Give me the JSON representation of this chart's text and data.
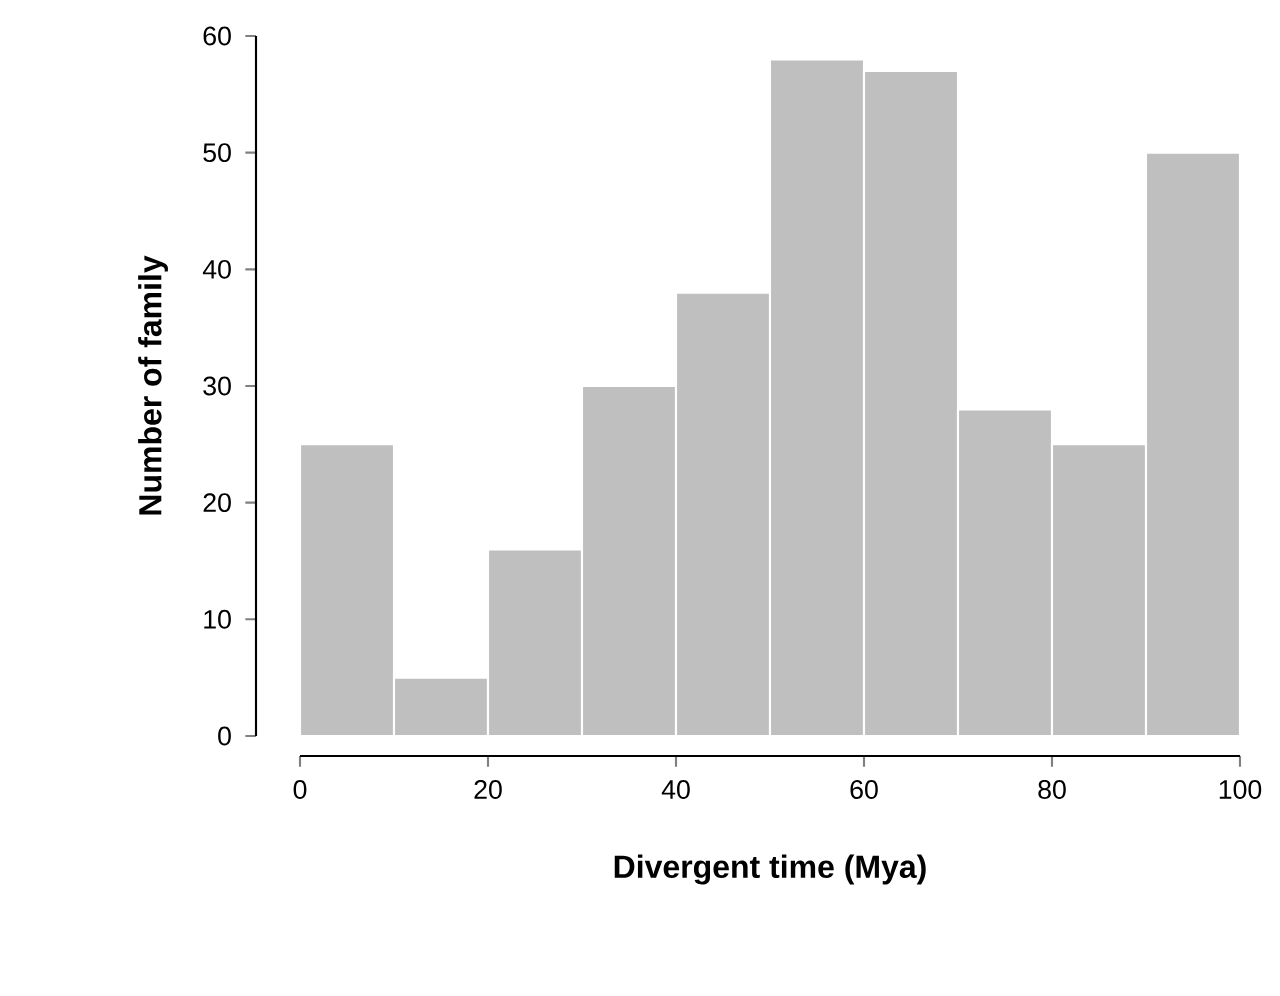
{
  "chart_data": {
    "type": "histogram",
    "xlabel": "Divergent time (Mya)",
    "ylabel": "Number of family",
    "bins": [
      0,
      10,
      20,
      30,
      40,
      50,
      60,
      70,
      80,
      90,
      100
    ],
    "values": [
      25,
      5,
      16,
      30,
      38,
      58,
      57,
      28,
      25,
      50
    ],
    "color": "#bfbfbf",
    "xlim": [
      0,
      100
    ],
    "ylim": [
      0,
      60
    ],
    "xticks": [
      0,
      20,
      40,
      60,
      80,
      100
    ],
    "yticks": [
      0,
      10,
      20,
      30,
      40,
      50,
      60
    ]
  }
}
